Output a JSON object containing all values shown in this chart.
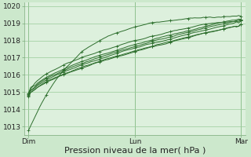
{
  "bg_color": "#cce8cc",
  "plot_bg_color": "#ddf0dd",
  "grid_color": "#99cc99",
  "line_color": "#2d6e2d",
  "marker_color": "#2d6e2d",
  "xlabel": "Pression niveau de la mer( hPa )",
  "xlabel_fontsize": 8,
  "xtick_labels": [
    "Dim",
    "Lun",
    "Mar"
  ],
  "xtick_positions": [
    0,
    48,
    96
  ],
  "ylim": [
    1012.5,
    1020.2
  ],
  "ytick_vals": [
    1013,
    1014,
    1015,
    1016,
    1017,
    1018,
    1019,
    1020
  ],
  "xlim": [
    -2,
    98
  ],
  "line_width": 0.7,
  "marker_size": 2.0,
  "tick_fontsize": 6.5,
  "figsize": [
    3.2,
    2.0
  ],
  "dpi": 100
}
